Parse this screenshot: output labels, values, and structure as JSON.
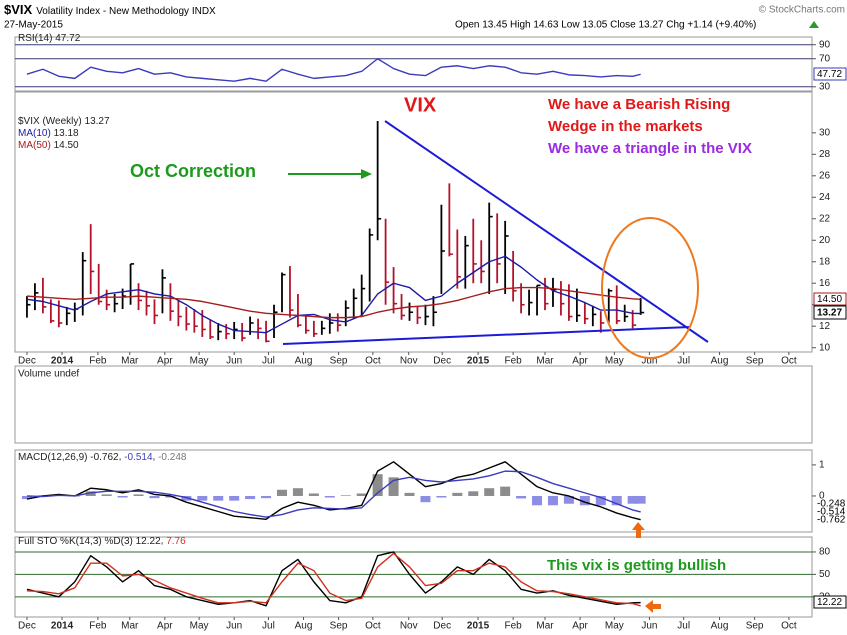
{
  "header": {
    "symbol": "$VIX",
    "name": "Volatility Index - New Methodology INDX",
    "date": "27-May-2015",
    "quote": "Open 13.45  High 14.63  Low 13.05  Close 13.27  Chg +1.14 (+9.40%)",
    "copyright": "© StockCharts.com"
  },
  "annotations": {
    "vix": "VIX",
    "bearish_1": "We have a Bearish Rising",
    "bearish_2": "Wedge in the markets",
    "triangle": "We have a triangle in the VIX",
    "oct": "Oct Correction",
    "bullish": "This vix is getting bullish"
  },
  "volume_panel": {
    "title": "Volume undef"
  },
  "chart_data": [
    {
      "type": "line",
      "xlim": [
        -1.5,
        98.5
      ],
      "ylim": [
        24,
        101
      ],
      "yticks": [
        30,
        70,
        90
      ],
      "grid": true,
      "grid_color": "#3a3a7a",
      "x": [
        0,
        2,
        4,
        6,
        8,
        10,
        12,
        14,
        16,
        18,
        20,
        22,
        24,
        26,
        28,
        30,
        32,
        34,
        36,
        38,
        40,
        42,
        44,
        46,
        48,
        50,
        52,
        54,
        56,
        58,
        60,
        62,
        64,
        66,
        68,
        70,
        72,
        74,
        76,
        77
      ],
      "series": [
        {
          "name": "RSI(14)",
          "color": "#3b3bbd",
          "values": [
            48,
            55,
            45,
            42,
            58,
            52,
            50,
            56,
            48,
            50,
            44,
            42,
            40,
            38,
            42,
            38,
            55,
            48,
            42,
            44,
            46,
            52,
            70,
            56,
            48,
            46,
            58,
            60,
            56,
            60,
            58,
            50,
            48,
            52,
            47,
            46,
            44,
            46,
            45,
            47.72
          ]
        }
      ]
    },
    {
      "type": "ohlc",
      "name": "$VIX (Weekly)",
      "xlim": [
        -1.5,
        98.5
      ],
      "ylim": [
        9.6,
        33.8
      ],
      "yticks": [
        10,
        12,
        14,
        16,
        18,
        20,
        22,
        24,
        26,
        28,
        30
      ],
      "grid": false,
      "up_color": "#000000",
      "down_color": "#b3122b",
      "xticks": [
        {
          "value": 0,
          "label": "Dec"
        },
        {
          "value": 4.4,
          "label": "2014"
        },
        {
          "value": 8.9,
          "label": "Feb"
        },
        {
          "value": 12.9,
          "label": "Mar"
        },
        {
          "value": 17.3,
          "label": "Apr"
        },
        {
          "value": 21.6,
          "label": "May"
        },
        {
          "value": 26,
          "label": "Jun"
        },
        {
          "value": 30.3,
          "label": "Jul"
        },
        {
          "value": 34.7,
          "label": "Aug"
        },
        {
          "value": 39.1,
          "label": "Sep"
        },
        {
          "value": 43.4,
          "label": "Oct"
        },
        {
          "value": 47.9,
          "label": "Nov"
        },
        {
          "value": 52.1,
          "label": "Dec"
        },
        {
          "value": 56.6,
          "label": "2015"
        },
        {
          "value": 61,
          "label": "Feb"
        },
        {
          "value": 65,
          "label": "Mar"
        },
        {
          "value": 69.4,
          "label": "Apr"
        },
        {
          "value": 73.7,
          "label": "May"
        },
        {
          "value": 78.1,
          "label": "Jun"
        },
        {
          "value": 82.4,
          "label": "Jul"
        },
        {
          "value": 86.9,
          "label": "Aug"
        },
        {
          "value": 91.3,
          "label": "Sep"
        },
        {
          "value": 95.6,
          "label": "Oct"
        }
      ],
      "x": [
        0,
        1,
        2,
        3,
        4,
        5,
        6,
        7,
        8,
        9,
        10,
        11,
        12,
        13,
        14,
        15,
        16,
        17,
        18,
        19,
        20,
        21,
        22,
        23,
        24,
        25,
        26,
        27,
        28,
        29,
        30,
        31,
        32,
        33,
        34,
        35,
        36,
        37,
        38,
        39,
        40,
        41,
        42,
        43,
        44,
        45,
        46,
        47,
        48,
        49,
        50,
        51,
        52,
        53,
        54,
        55,
        56,
        57,
        58,
        59,
        60,
        61,
        62,
        63,
        64,
        65,
        66,
        67,
        68,
        69,
        70,
        71,
        72,
        73,
        74,
        75,
        76,
        77
      ],
      "ohlc": {
        "high": [
          14.8,
          16.0,
          16.5,
          14.5,
          14.4,
          13.8,
          14.2,
          18.9,
          21.5,
          17.8,
          15.4,
          15.0,
          15.5,
          17.8,
          16.0,
          15.3,
          14.5,
          17.3,
          16.0,
          14.4,
          13.8,
          13.6,
          13.5,
          12.6,
          12.3,
          12.2,
          12.4,
          12.3,
          12.9,
          12.7,
          12.5,
          14.0,
          17.0,
          17.6,
          15.0,
          13.0,
          12.5,
          12.5,
          13.2,
          13.2,
          14.4,
          15.5,
          16.8,
          21.1,
          31.1,
          22.0,
          17.5,
          15.0,
          14.2,
          13.8,
          14.0,
          14.8,
          23.3,
          25.3,
          21.0,
          20.4,
          22.0,
          20.0,
          23.5,
          22.5,
          21.8,
          19.0,
          16.0,
          15.4,
          15.8,
          16.5,
          16.5,
          16.2,
          15.9,
          15.5,
          14.2,
          13.9,
          13.4,
          15.5,
          15.8,
          14.0,
          13.5,
          14.63
        ],
        "low": [
          12.8,
          13.5,
          13.2,
          12.3,
          11.9,
          12.1,
          12.4,
          13.0,
          15.0,
          14.0,
          13.5,
          13.3,
          13.6,
          14.0,
          13.5,
          13.0,
          12.2,
          13.2,
          12.5,
          12.0,
          11.6,
          11.4,
          11.0,
          10.8,
          10.7,
          10.8,
          10.8,
          10.6,
          11.2,
          10.8,
          10.5,
          10.9,
          13.3,
          12.8,
          11.9,
          11.3,
          11.0,
          11.2,
          11.3,
          11.5,
          12.0,
          12.7,
          13.0,
          14.3,
          20.0,
          14.0,
          13.2,
          12.6,
          12.5,
          12.2,
          12.1,
          12.0,
          15.0,
          18.5,
          15.5,
          15.5,
          16.0,
          16.0,
          15.0,
          16.0,
          15.0,
          14.3,
          13.2,
          13.0,
          13.0,
          13.5,
          13.8,
          13.0,
          12.5,
          12.4,
          12.2,
          12.0,
          11.4,
          12.3,
          12.2,
          12.4,
          11.8,
          13.05
        ],
        "close": [
          14.0,
          15.1,
          13.8,
          12.5,
          12.3,
          13.2,
          13.6,
          18.1,
          17.1,
          14.3,
          14.0,
          14.1,
          14.8,
          17.8,
          14.4,
          13.9,
          13.0,
          16.5,
          13.4,
          12.9,
          12.2,
          12.0,
          11.7,
          11.0,
          11.5,
          11.3,
          11.7,
          10.9,
          12.3,
          11.8,
          10.6,
          13.3,
          16.8,
          13.5,
          12.1,
          11.6,
          11.3,
          11.8,
          12.3,
          12.1,
          13.7,
          14.6,
          15.5,
          20.5,
          22.0,
          16.1,
          14.1,
          13.0,
          13.3,
          12.8,
          12.9,
          13.3,
          19.0,
          18.7,
          16.6,
          19.5,
          17.8,
          17.1,
          22.2,
          17.8,
          20.4,
          15.3,
          14.0,
          14.2,
          15.8,
          14.1,
          15.4,
          14.1,
          12.9,
          13.0,
          12.7,
          13.1,
          12.3,
          15.3,
          12.5,
          12.9,
          12.1,
          13.27
        ]
      },
      "series": [
        {
          "name": "MA(10)",
          "color": "#1a1aa8",
          "x": [
            0,
            2,
            4,
            6,
            8,
            10,
            12,
            14,
            16,
            18,
            20,
            22,
            24,
            26,
            28,
            30,
            32,
            34,
            36,
            38,
            40,
            42,
            44,
            46,
            48,
            50,
            52,
            54,
            56,
            58,
            60,
            62,
            64,
            66,
            68,
            70,
            72,
            74,
            76,
            77
          ],
          "values": [
            14.5,
            14.3,
            13.9,
            13.5,
            14.3,
            15.0,
            15.2,
            15.4,
            15.0,
            14.8,
            14.0,
            13.0,
            12.2,
            11.6,
            11.5,
            11.4,
            12.2,
            13.0,
            13.1,
            12.6,
            12.4,
            13.0,
            15.0,
            16.0,
            15.6,
            14.4,
            14.8,
            16.0,
            17.0,
            18.0,
            18.5,
            17.5,
            16.3,
            15.3,
            14.8,
            14.2,
            13.5,
            13.5,
            13.2,
            13.18
          ]
        },
        {
          "name": "MA(50)",
          "color": "#a51d1d",
          "x": [
            0,
            2,
            4,
            6,
            8,
            10,
            12,
            14,
            16,
            18,
            20,
            22,
            24,
            26,
            28,
            30,
            32,
            34,
            36,
            38,
            40,
            42,
            44,
            46,
            48,
            50,
            52,
            54,
            56,
            58,
            60,
            62,
            64,
            66,
            68,
            70,
            72,
            74,
            76,
            77
          ],
          "values": [
            14.8,
            14.7,
            14.6,
            14.5,
            14.6,
            14.7,
            14.7,
            14.8,
            14.7,
            14.6,
            14.5,
            14.3,
            14.0,
            13.7,
            13.4,
            13.2,
            13.1,
            13.0,
            12.9,
            12.8,
            12.8,
            12.9,
            13.3,
            13.6,
            13.8,
            13.9,
            14.1,
            14.4,
            14.8,
            15.2,
            15.5,
            15.6,
            15.6,
            15.5,
            15.3,
            15.1,
            14.9,
            14.7,
            14.55,
            14.5
          ],
          "value_labels": [
            null,
            null,
            null,
            null,
            null,
            null,
            null,
            null,
            null,
            null,
            null,
            null,
            null,
            null,
            null,
            null,
            null,
            null,
            null,
            null,
            null,
            null,
            null,
            null,
            null,
            null,
            null,
            null,
            null,
            null,
            null,
            null,
            null,
            null,
            null,
            null,
            null,
            null,
            null,
            "14.50"
          ]
        }
      ]
    },
    {
      "type": "macd",
      "legend": "MACD(12,26,9)",
      "xlim": [
        -1.5,
        98.5
      ],
      "ylim": [
        -1.16,
        1.48
      ],
      "yticks": [
        0,
        1
      ],
      "grid": false,
      "color_up": "#8c8c8c",
      "color_down": "#8d8de6",
      "x": [
        0,
        2,
        4,
        6,
        8,
        10,
        12,
        14,
        16,
        18,
        20,
        22,
        24,
        26,
        28,
        30,
        32,
        34,
        36,
        38,
        40,
        42,
        44,
        46,
        48,
        50,
        52,
        54,
        56,
        58,
        60,
        62,
        64,
        66,
        68,
        70,
        72,
        74,
        76,
        77
      ],
      "series": [
        {
          "kind": "histogram",
          "values": [
            -0.1,
            0.02,
            0.03,
            0.0,
            0.15,
            0.05,
            -0.05,
            0.05,
            -0.07,
            -0.05,
            -0.15,
            -0.15,
            -0.15,
            -0.15,
            -0.1,
            -0.07,
            0.2,
            0.25,
            0.08,
            -0.05,
            0.02,
            0.08,
            0.7,
            0.6,
            0.1,
            -0.2,
            -0.05,
            0.1,
            0.15,
            0.25,
            0.3,
            -0.08,
            -0.3,
            -0.3,
            -0.25,
            -0.3,
            -0.3,
            -0.3,
            -0.25,
            -0.248
          ]
        },
        {
          "kind": "line",
          "color": "#000000",
          "values": [
            -0.1,
            0.0,
            0.05,
            0.0,
            0.25,
            0.2,
            0.1,
            0.2,
            0.05,
            0.0,
            -0.2,
            -0.35,
            -0.5,
            -0.65,
            -0.7,
            -0.75,
            -0.4,
            -0.2,
            -0.3,
            -0.45,
            -0.4,
            -0.3,
            0.8,
            1.1,
            0.7,
            0.3,
            0.4,
            0.6,
            0.7,
            0.9,
            1.1,
            0.7,
            0.3,
            0.1,
            0.0,
            -0.2,
            -0.35,
            -0.55,
            -0.7,
            -0.762
          ]
        },
        {
          "kind": "line",
          "color": "#3b3bbd",
          "values": [
            0.0,
            -0.02,
            0.02,
            0.0,
            0.1,
            0.15,
            0.15,
            0.15,
            0.12,
            0.05,
            -0.05,
            -0.2,
            -0.35,
            -0.5,
            -0.6,
            -0.68,
            -0.6,
            -0.45,
            -0.38,
            -0.4,
            -0.42,
            -0.38,
            0.1,
            0.5,
            0.6,
            0.5,
            0.45,
            0.5,
            0.55,
            0.65,
            0.8,
            0.78,
            0.6,
            0.4,
            0.25,
            0.1,
            -0.05,
            -0.25,
            -0.45,
            -0.514
          ]
        }
      ]
    },
    {
      "type": "line",
      "legend": "Full STO %K(14,3) %D(3)",
      "xlim": [
        -1.5,
        98.5
      ],
      "ylim": [
        -7,
        100
      ],
      "yticks": [
        20,
        50,
        80
      ],
      "grid": true,
      "grid_color": "#2f6b2f",
      "xticks": [
        {
          "value": 0,
          "label": "Dec"
        },
        {
          "value": 4.4,
          "label": "2014"
        },
        {
          "value": 8.9,
          "label": "Feb"
        },
        {
          "value": 12.9,
          "label": "Mar"
        },
        {
          "value": 17.3,
          "label": "Apr"
        },
        {
          "value": 21.6,
          "label": "May"
        },
        {
          "value": 26,
          "label": "Jun"
        },
        {
          "value": 30.3,
          "label": "Jul"
        },
        {
          "value": 34.7,
          "label": "Aug"
        },
        {
          "value": 39.1,
          "label": "Sep"
        },
        {
          "value": 43.4,
          "label": "Oct"
        },
        {
          "value": 47.9,
          "label": "Nov"
        },
        {
          "value": 52.1,
          "label": "Dec"
        },
        {
          "value": 56.6,
          "label": "2015"
        },
        {
          "value": 61,
          "label": "Feb"
        },
        {
          "value": 65,
          "label": "Mar"
        },
        {
          "value": 69.4,
          "label": "Apr"
        },
        {
          "value": 73.7,
          "label": "May"
        },
        {
          "value": 78.1,
          "label": "Jun"
        },
        {
          "value": 82.4,
          "label": "Jul"
        },
        {
          "value": 86.9,
          "label": "Aug"
        },
        {
          "value": 91.3,
          "label": "Sep"
        },
        {
          "value": 95.6,
          "label": "Oct"
        }
      ],
      "x": [
        0,
        2,
        4,
        6,
        8,
        10,
        12,
        14,
        16,
        18,
        20,
        22,
        24,
        26,
        28,
        30,
        32,
        34,
        36,
        38,
        40,
        42,
        44,
        46,
        48,
        50,
        52,
        54,
        56,
        58,
        60,
        62,
        64,
        66,
        68,
        70,
        72,
        74,
        76,
        77
      ],
      "series": [
        {
          "color": "#000000",
          "values": [
            30,
            25,
            20,
            40,
            75,
            60,
            40,
            55,
            35,
            30,
            20,
            15,
            10,
            12,
            15,
            8,
            55,
            70,
            40,
            15,
            12,
            20,
            75,
            80,
            50,
            25,
            40,
            60,
            50,
            70,
            55,
            30,
            25,
            28,
            22,
            18,
            14,
            10,
            12,
            12.22
          ]
        },
        {
          "color": "#d0311f",
          "values": [
            28,
            27,
            24,
            32,
            65,
            65,
            48,
            50,
            42,
            32,
            25,
            18,
            12,
            12,
            14,
            12,
            40,
            65,
            55,
            25,
            15,
            18,
            60,
            78,
            60,
            35,
            38,
            55,
            55,
            65,
            60,
            40,
            28,
            27,
            24,
            20,
            16,
            12,
            11,
            7.76
          ]
        }
      ]
    }
  ]
}
